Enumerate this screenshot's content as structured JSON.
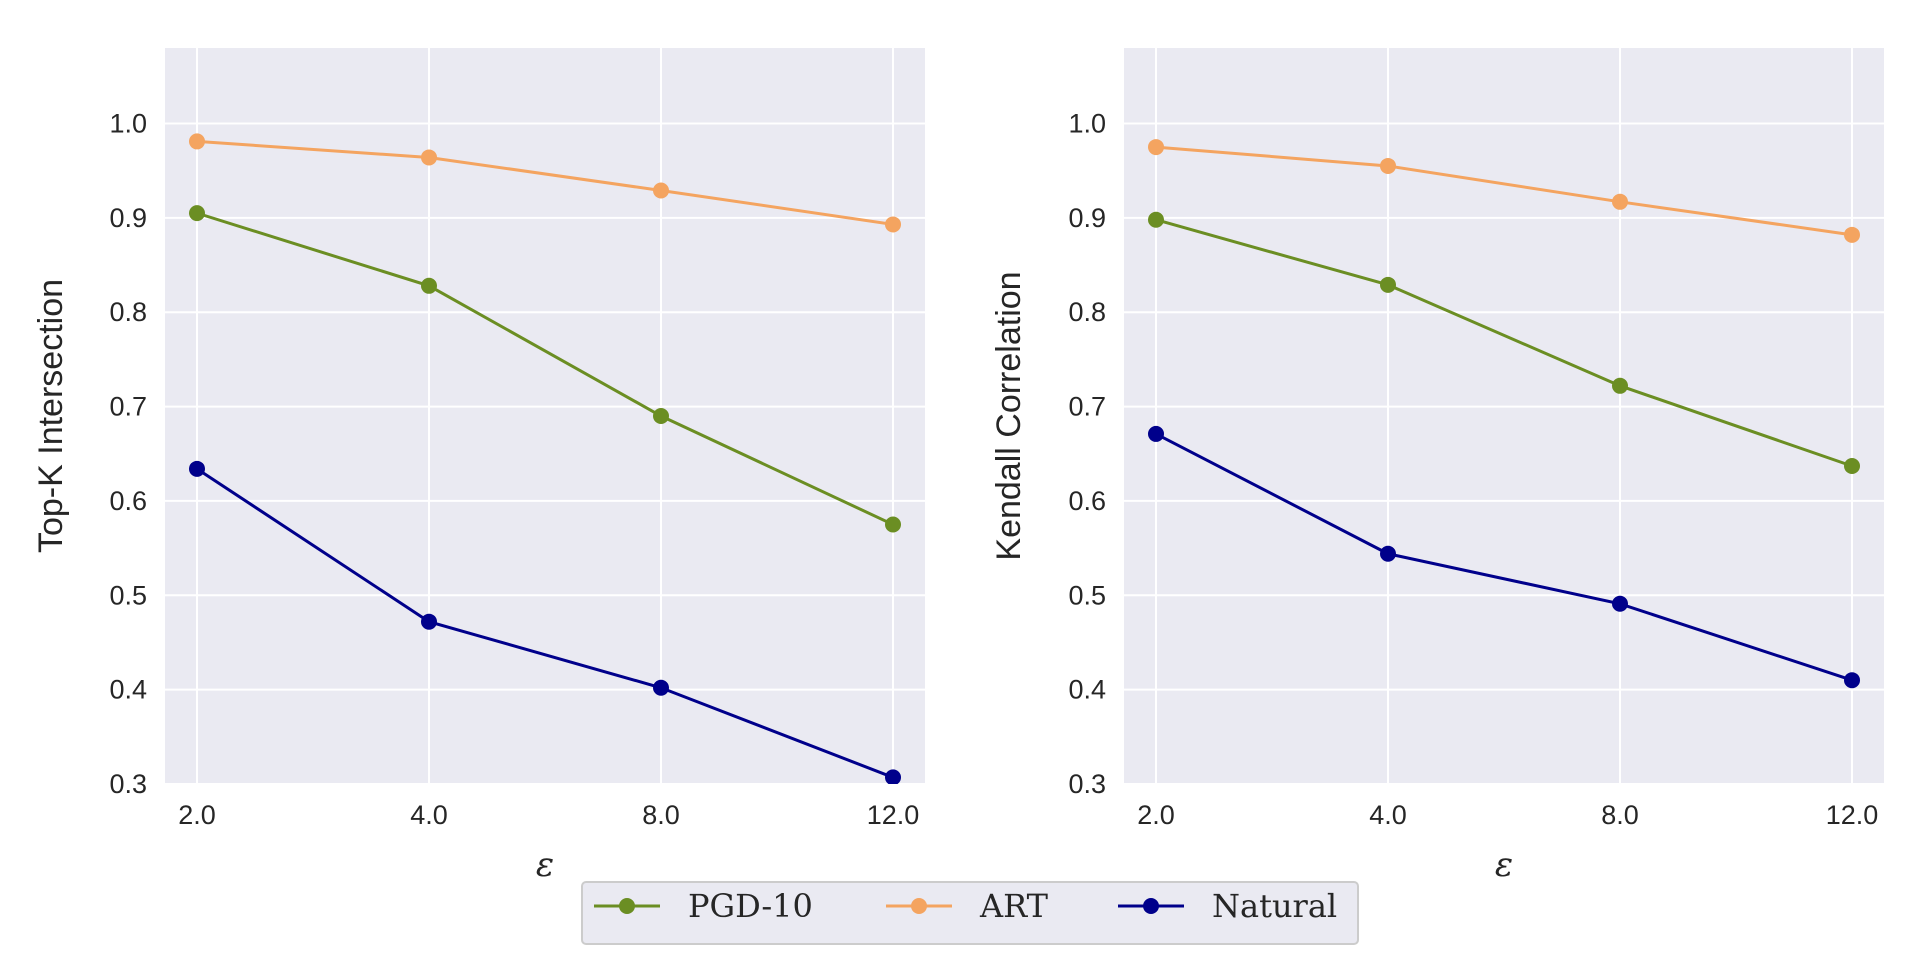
{
  "chart_data": [
    {
      "type": "line",
      "x": [
        "2.0",
        "4.0",
        "8.0",
        "12.0"
      ],
      "xlabel": "ε",
      "ylabel": "Top-K Intersection",
      "ylim": [
        0.3,
        1.08
      ],
      "yticks": [
        "0.3",
        "0.4",
        "0.5",
        "0.6",
        "0.7",
        "0.8",
        "0.9",
        "1.0"
      ],
      "ytick_values": [
        0.3,
        0.4,
        0.5,
        0.6,
        0.7,
        0.8,
        0.9,
        1.0
      ],
      "grid": true,
      "series": [
        {
          "name": "PGD-10",
          "values": [
            0.905,
            0.828,
            0.69,
            0.575
          ]
        },
        {
          "name": "ART",
          "values": [
            0.981,
            0.964,
            0.929,
            0.893
          ]
        },
        {
          "name": "Natural",
          "values": [
            0.634,
            0.472,
            0.402,
            0.307
          ]
        }
      ]
    },
    {
      "type": "line",
      "x": [
        "2.0",
        "4.0",
        "8.0",
        "12.0"
      ],
      "xlabel": "ε",
      "ylabel": "Kendall Correlation",
      "ylim": [
        0.3,
        1.08
      ],
      "yticks": [
        "0.3",
        "0.4",
        "0.5",
        "0.6",
        "0.7",
        "0.8",
        "0.9",
        "1.0"
      ],
      "ytick_values": [
        0.3,
        0.4,
        0.5,
        0.6,
        0.7,
        0.8,
        0.9,
        1.0
      ],
      "grid": true,
      "series": [
        {
          "name": "PGD-10",
          "values": [
            0.898,
            0.829,
            0.722,
            0.637
          ]
        },
        {
          "name": "ART",
          "values": [
            0.975,
            0.955,
            0.917,
            0.882
          ]
        },
        {
          "name": "Natural",
          "values": [
            0.671,
            0.544,
            0.491,
            0.41
          ]
        }
      ]
    }
  ],
  "legend": {
    "placement": "bottom-center",
    "entries": [
      {
        "label": "PGD-10",
        "color": "#6b8e23"
      },
      {
        "label": "ART",
        "color": "#f4a460"
      },
      {
        "label": "Natural",
        "color": "#00008b"
      }
    ]
  },
  "style": {
    "plot_background": "#eaeaf2",
    "grid_color": "#ffffff"
  }
}
